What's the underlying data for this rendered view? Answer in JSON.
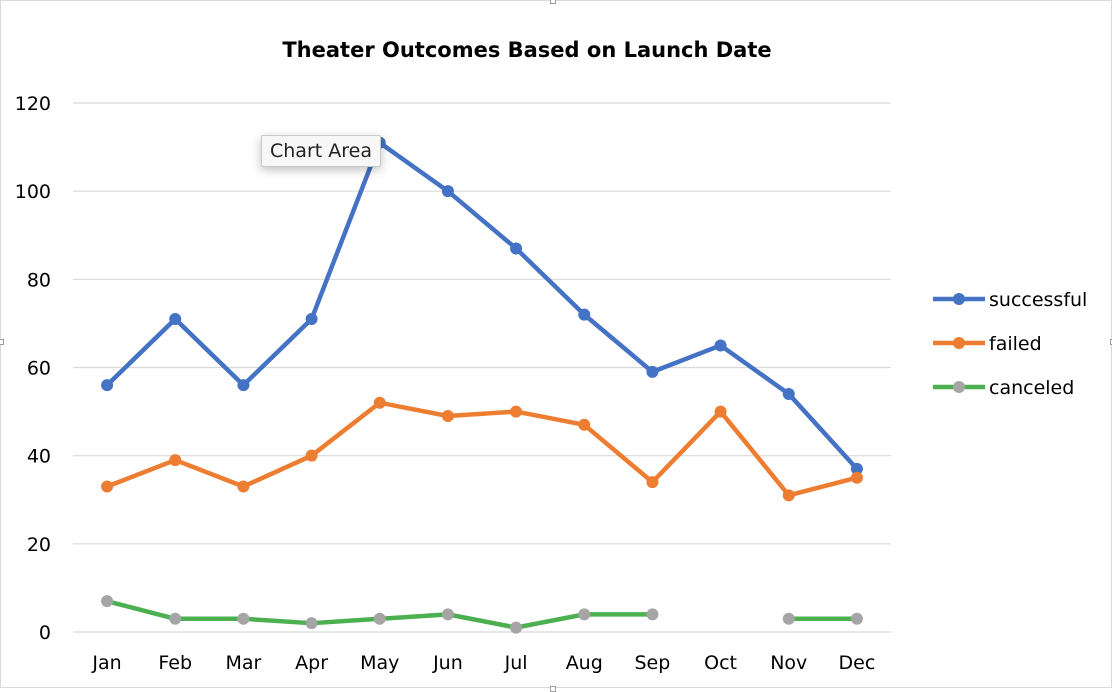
{
  "tooltip": {
    "label": "Chart Area"
  },
  "chart_data": {
    "type": "line",
    "title": "Theater Outcomes Based on Launch Date",
    "xlabel": "",
    "ylabel": "",
    "categories": [
      "Jan",
      "Feb",
      "Mar",
      "Apr",
      "May",
      "Jun",
      "Jul",
      "Aug",
      "Sep",
      "Oct",
      "Nov",
      "Dec"
    ],
    "ylim": [
      0,
      120
    ],
    "yticks": [
      0,
      20,
      40,
      60,
      80,
      100,
      120
    ],
    "grid": true,
    "legend_position": "right",
    "series": [
      {
        "name": "successful",
        "color": "#4472c4",
        "marker_color": "#4472c4",
        "values": [
          56,
          71,
          56,
          71,
          111,
          100,
          87,
          72,
          59,
          65,
          54,
          37
        ]
      },
      {
        "name": "failed",
        "color": "#ed7d31",
        "marker_color": "#ed7d31",
        "values": [
          33,
          39,
          33,
          40,
          52,
          49,
          50,
          47,
          34,
          50,
          31,
          35
        ]
      },
      {
        "name": "canceled",
        "color": "#4caf50",
        "marker_color": "#a5a5a5",
        "values": [
          7,
          3,
          3,
          2,
          3,
          4,
          1,
          4,
          4,
          null,
          3,
          3
        ]
      }
    ]
  }
}
